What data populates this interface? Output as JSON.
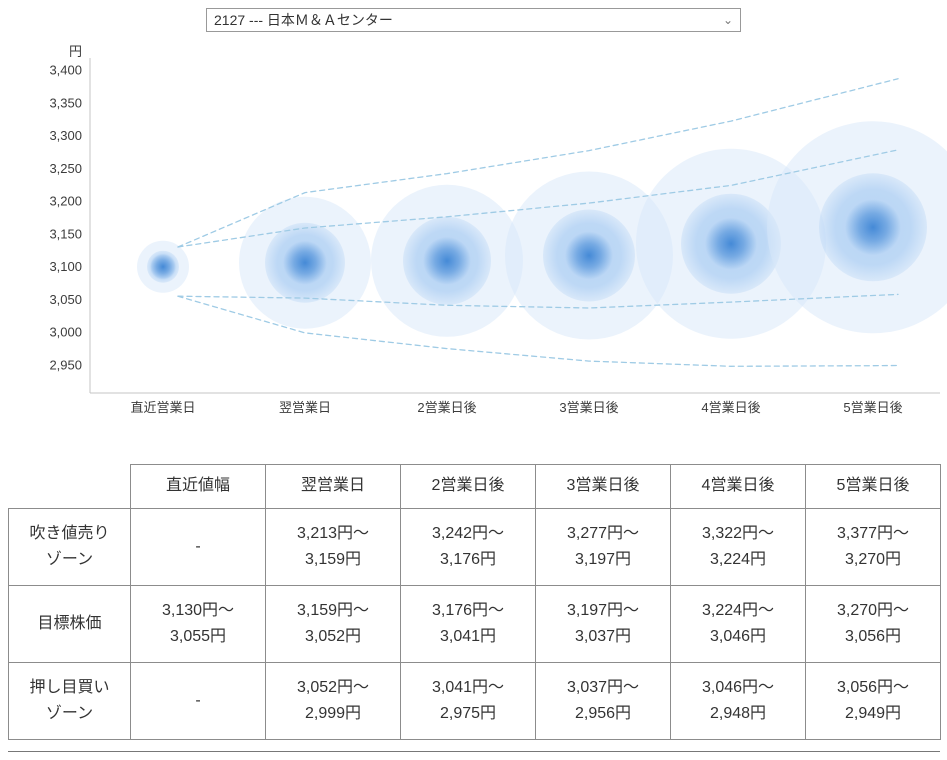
{
  "stock_selector": {
    "value": "2127 --- 日本Ｍ＆Ａセンター",
    "chevron_icon": "⌄"
  },
  "chart_data": {
    "type": "bubble",
    "title": "",
    "unit_label": "円",
    "categories": [
      "直近営業日",
      "翌営業日",
      "2営業日後",
      "3営業日後",
      "4営業日後",
      "5営業日後"
    ],
    "y_ticks": [
      3400,
      3350,
      3300,
      3250,
      3200,
      3150,
      3100,
      3050,
      3000,
      2950
    ],
    "ylim": [
      2950,
      3400
    ],
    "grid": false,
    "legend": false,
    "bubbles": [
      {
        "category": "直近営業日",
        "price": 3100,
        "r_halo": 26,
        "r_mid": 16,
        "r_core": 13
      },
      {
        "category": "翌営業日",
        "price": 3106,
        "r_halo": 66,
        "r_mid": 40,
        "r_core": 22
      },
      {
        "category": "2営業日後",
        "price": 3109,
        "r_halo": 76,
        "r_mid": 44,
        "r_core": 24
      },
      {
        "category": "3営業日後",
        "price": 3117,
        "r_halo": 84,
        "r_mid": 46,
        "r_core": 24
      },
      {
        "category": "4営業日後",
        "price": 3135,
        "r_halo": 95,
        "r_mid": 50,
        "r_core": 26
      },
      {
        "category": "5営業日後",
        "price": 3160,
        "r_halo": 106,
        "r_mid": 54,
        "r_core": 28
      }
    ],
    "fan_lines": [
      {
        "name": "sell-zone-upper",
        "start_price": 3130,
        "values": [
          3213,
          3242,
          3277,
          3322,
          3377
        ]
      },
      {
        "name": "sell-zone-lower",
        "start_price": 3130,
        "values": [
          3159,
          3176,
          3197,
          3224,
          3270
        ]
      },
      {
        "name": "buy-zone-upper",
        "start_price": 3055,
        "values": [
          3052,
          3041,
          3037,
          3046,
          3056
        ]
      },
      {
        "name": "buy-zone-lower",
        "start_price": 3055,
        "values": [
          2999,
          2975,
          2956,
          2948,
          2949
        ]
      }
    ],
    "colors": {
      "bubble_core": "#3f86d5",
      "bubble_mid": "#aecff3",
      "bubble_halo": "#d8e8fa",
      "fan_line": "#9fcbe5",
      "axis": "#c4c4c4",
      "text": "#3c3c3c"
    }
  },
  "table": {
    "headers": [
      "",
      "直近値幅",
      "翌営業日",
      "2営業日後",
      "3営業日後",
      "4営業日後",
      "5営業日後"
    ],
    "rows": [
      {
        "label": "吹き値売り\nゾーン",
        "cells": [
          "-",
          "3,213円～\n3,159円",
          "3,242円～\n3,176円",
          "3,277円～\n3,197円",
          "3,322円～\n3,224円",
          "3,377円～\n3,270円"
        ]
      },
      {
        "label": "目標株価",
        "cells": [
          "3,130円～\n3,055円",
          "3,159円～\n3,052円",
          "3,176円～\n3,041円",
          "3,197円～\n3,037円",
          "3,224円～\n3,046円",
          "3,270円～\n3,056円"
        ]
      },
      {
        "label": "押し目買い\nゾーン",
        "cells": [
          "-",
          "3,052円～\n2,999円",
          "3,041円～\n2,975円",
          "3,037円～\n2,956円",
          "3,046円～\n2,948円",
          "3,056円～\n2,949円"
        ]
      }
    ]
  }
}
